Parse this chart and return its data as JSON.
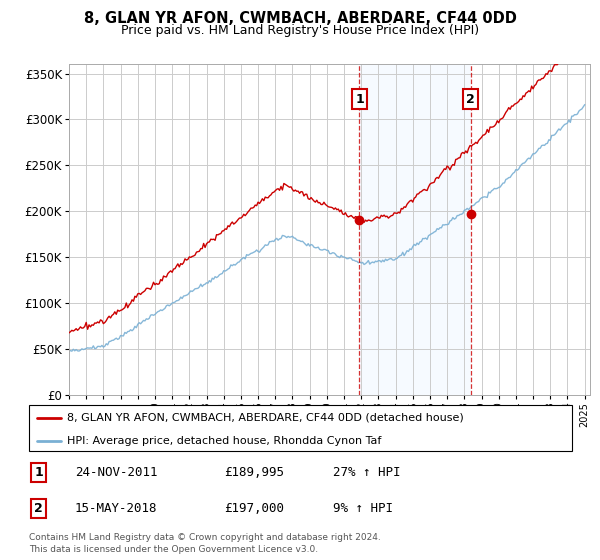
{
  "title": "8, GLAN YR AFON, CWMBACH, ABERDARE, CF44 0DD",
  "subtitle": "Price paid vs. HM Land Registry's House Price Index (HPI)",
  "legend_line1": "8, GLAN YR AFON, CWMBACH, ABERDARE, CF44 0DD (detached house)",
  "legend_line2": "HPI: Average price, detached house, Rhondda Cynon Taf",
  "annotation1_date": "24-NOV-2011",
  "annotation1_price": "£189,995",
  "annotation1_hpi": "27% ↑ HPI",
  "annotation2_date": "15-MAY-2018",
  "annotation2_price": "£197,000",
  "annotation2_hpi": "9% ↑ HPI",
  "footnote": "Contains HM Land Registry data © Crown copyright and database right 2024.\nThis data is licensed under the Open Government Licence v3.0.",
  "red_color": "#cc0000",
  "blue_color": "#7ab0d4",
  "bg_highlight_color": "#ddeeff",
  "annotation_box_color": "#cc0000",
  "grid_color": "#cccccc",
  "ylim": [
    0,
    360000
  ],
  "sale1_x": 2011.9,
  "sale2_x": 2018.37,
  "sale1_price": 189995,
  "sale2_price": 197000
}
